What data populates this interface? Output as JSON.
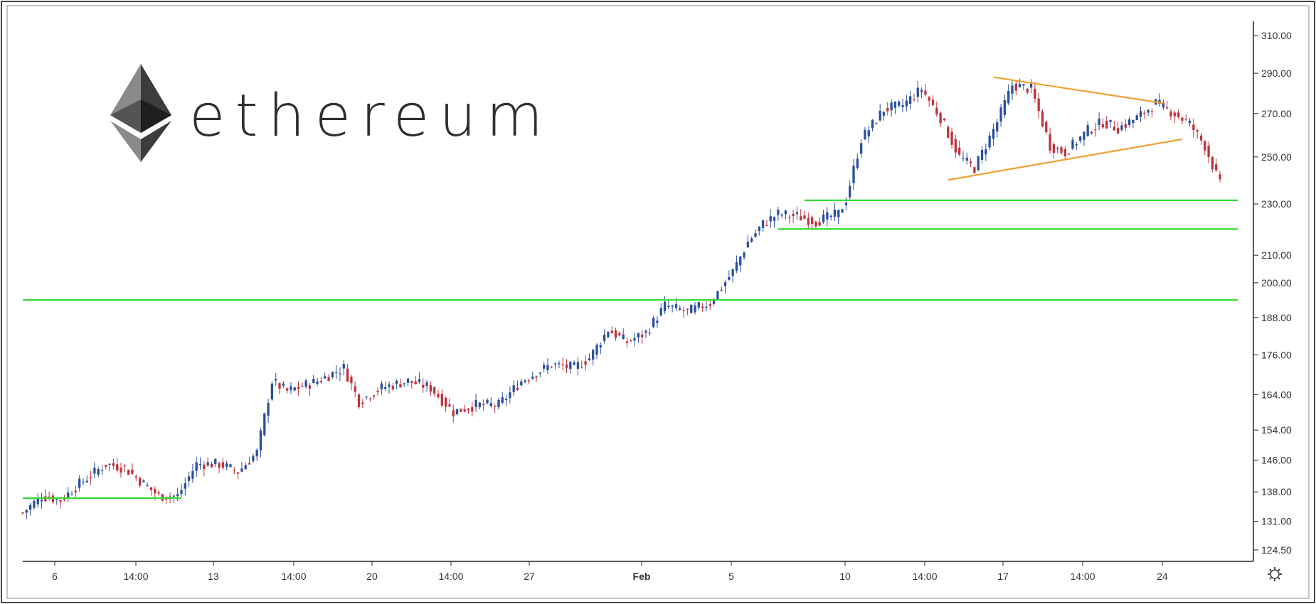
{
  "logo": {
    "wordmark": "ethereum",
    "icon": "ethereum-diamond-icon"
  },
  "colors": {
    "up": "#2a4f9e",
    "down": "#c0323a",
    "support": "#33dd33",
    "trend": "#f0a030",
    "axis": "#222222",
    "frame": "#444444"
  },
  "settings_icon": "gear-icon",
  "chart_data": {
    "type": "candlestick",
    "title": "",
    "xlabel": "",
    "ylabel": "",
    "scale": "log",
    "ylim": [
      122,
      318
    ],
    "x_tick_labels": [
      "6",
      "14:00",
      "13",
      "14:00",
      "20",
      "14:00",
      "27",
      "Feb",
      "5",
      "10",
      "14:00",
      "17",
      "14:00",
      "24"
    ],
    "y_tick_labels": [
      "310.00",
      "290.00",
      "270.00",
      "250.00",
      "230.00",
      "210.00",
      "200.00",
      "188.00",
      "176.00",
      "164.00",
      "154.00",
      "146.00",
      "138.00",
      "131.00",
      "124.50"
    ],
    "y_ticks": [
      310,
      290,
      270,
      250,
      230,
      210,
      200,
      188,
      176,
      164,
      154,
      146,
      138,
      131,
      124.5
    ],
    "price_path": [
      [
        0,
        133
      ],
      [
        5,
        137
      ],
      [
        10,
        136
      ],
      [
        15,
        140
      ],
      [
        22,
        145
      ],
      [
        27,
        144
      ],
      [
        32,
        140
      ],
      [
        36,
        137
      ],
      [
        41,
        137
      ],
      [
        46,
        145
      ],
      [
        52,
        145
      ],
      [
        57,
        143
      ],
      [
        62,
        148
      ],
      [
        66,
        168
      ],
      [
        70,
        165
      ],
      [
        78,
        168
      ],
      [
        85,
        172
      ],
      [
        89,
        162
      ],
      [
        95,
        166
      ],
      [
        102,
        168
      ],
      [
        108,
        166
      ],
      [
        114,
        159
      ],
      [
        120,
        161
      ],
      [
        126,
        161
      ],
      [
        132,
        168
      ],
      [
        140,
        173
      ],
      [
        146,
        172
      ],
      [
        150,
        175
      ],
      [
        155,
        184
      ],
      [
        160,
        180
      ],
      [
        165,
        183
      ],
      [
        170,
        192
      ],
      [
        176,
        190
      ],
      [
        182,
        193
      ],
      [
        188,
        204
      ],
      [
        192,
        215
      ],
      [
        196,
        222
      ],
      [
        200,
        226
      ],
      [
        205,
        225
      ],
      [
        210,
        223
      ],
      [
        216,
        226
      ],
      [
        218,
        232
      ],
      [
        222,
        258
      ],
      [
        228,
        272
      ],
      [
        233,
        274
      ],
      [
        238,
        282
      ],
      [
        243,
        268
      ],
      [
        248,
        250
      ],
      [
        252,
        245
      ],
      [
        258,
        266
      ],
      [
        262,
        284
      ],
      [
        267,
        282
      ],
      [
        272,
        255
      ],
      [
        276,
        252
      ],
      [
        282,
        262
      ],
      [
        286,
        266
      ],
      [
        290,
        263
      ],
      [
        295,
        268
      ],
      [
        300,
        275
      ],
      [
        305,
        270
      ],
      [
        309,
        265
      ],
      [
        313,
        255
      ],
      [
        317,
        238
      ]
    ],
    "support_lines": [
      {
        "price": 136.5,
        "x0": 0,
        "x1": 42
      },
      {
        "price": 194,
        "x0": 0,
        "x1": 310
      },
      {
        "price": 231.5,
        "x0": 207,
        "x1": 310
      },
      {
        "price": 220,
        "x0": 200,
        "x1": 310
      }
    ],
    "trend_lines": [
      {
        "x0": 257,
        "p0": 288,
        "x1": 302,
        "p1": 275
      },
      {
        "x0": 245,
        "p0": 240,
        "x1": 307,
        "p1": 258
      }
    ]
  }
}
